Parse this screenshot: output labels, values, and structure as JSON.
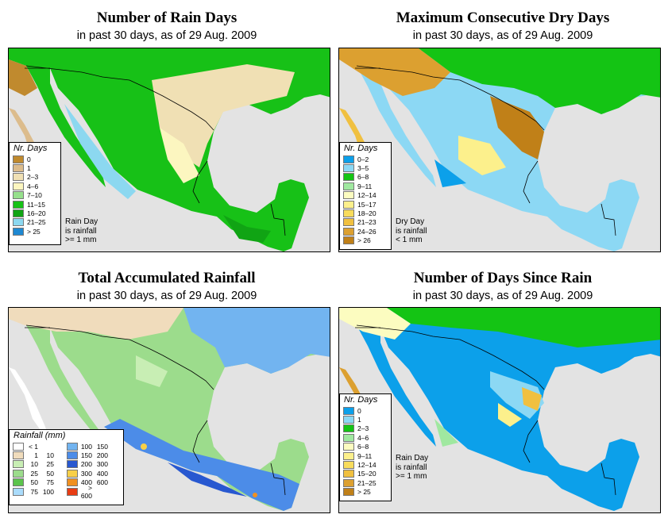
{
  "panels": {
    "rain_days": {
      "title": "Number of Rain Days",
      "subtitle": "in past 30 days, as of  29 Aug. 2009",
      "legend_title": "Nr. Days",
      "legend": [
        {
          "label": "0",
          "color": "#c08a2e"
        },
        {
          "label": "1",
          "color": "#dcbc8c"
        },
        {
          "label": "2–3",
          "color": "#f0e0b4"
        },
        {
          "label": "4–6",
          "color": "#fcf6c0"
        },
        {
          "label": "7–10",
          "color": "#96e08c"
        },
        {
          "label": "11–15",
          "color": "#17c117"
        },
        {
          "label": "16–20",
          "color": "#10a414"
        },
        {
          "label": "21–25",
          "color": "#8cd8f0"
        },
        {
          "label": "> 25",
          "color": "#1e88d2"
        }
      ],
      "note": [
        "Rain Day",
        "is rainfall",
        ">= 1 mm"
      ]
    },
    "dry_days": {
      "title": "Maximum Consecutive Dry Days",
      "subtitle": "in past 30 days, as of  29 Aug. 2009",
      "legend_title": "Nr. Days",
      "legend": [
        {
          "label": "0–2",
          "color": "#0ca0ea"
        },
        {
          "label": "3–5",
          "color": "#8cd8f4"
        },
        {
          "label": "6–8",
          "color": "#14c414"
        },
        {
          "label": "9–11",
          "color": "#a0e8a0"
        },
        {
          "label": "12–14",
          "color": "#fcfcc0"
        },
        {
          "label": "15–17",
          "color": "#fcf08c"
        },
        {
          "label": "18–20",
          "color": "#f8dc5c"
        },
        {
          "label": "21–23",
          "color": "#f0c040"
        },
        {
          "label": "24–26",
          "color": "#dca030"
        },
        {
          "label": "> 26",
          "color": "#c08018"
        }
      ],
      "note": [
        "Dry Day",
        "is rainfall",
        "< 1 mm"
      ]
    },
    "total_rain": {
      "title": "Total Accumulated Rainfall",
      "subtitle": "in past 30 days, as of  29 Aug. 2009",
      "legend_title": "Rainfall (mm)",
      "legend_left": [
        {
          "lo": "< 1",
          "hi": "",
          "color": "#ffffff"
        },
        {
          "lo": "1",
          "hi": "10",
          "color": "#f0dcbc"
        },
        {
          "lo": "10",
          "hi": "25",
          "color": "#c8eeb4"
        },
        {
          "lo": "25",
          "hi": "50",
          "color": "#9cdc8c"
        },
        {
          "lo": "50",
          "hi": "75",
          "color": "#5cc44c"
        },
        {
          "lo": "75",
          "hi": "100",
          "color": "#aadcfc"
        }
      ],
      "legend_right": [
        {
          "lo": "100",
          "hi": "150",
          "color": "#72b4f0"
        },
        {
          "lo": "150",
          "hi": "200",
          "color": "#4c8ce8"
        },
        {
          "lo": "200",
          "hi": "300",
          "color": "#2858d0"
        },
        {
          "lo": "300",
          "hi": "400",
          "color": "#f8d048"
        },
        {
          "lo": "400",
          "hi": "600",
          "color": "#f09020"
        },
        {
          "lo": "> 600",
          "hi": "",
          "color": "#e83c14"
        }
      ]
    },
    "since_rain": {
      "title": "Number of Days Since Rain",
      "subtitle": "in past 30 days, as of  29 Aug. 2009",
      "legend_title": "Nr. Days",
      "legend": [
        {
          "label": "0",
          "color": "#0ca0ea"
        },
        {
          "label": "1",
          "color": "#8cd8f4"
        },
        {
          "label": "2–3",
          "color": "#14c414"
        },
        {
          "label": "4–6",
          "color": "#a0e8a0"
        },
        {
          "label": "6–8",
          "color": "#fcfcc0"
        },
        {
          "label": "9–11",
          "color": "#fcf08c"
        },
        {
          "label": "12–14",
          "color": "#f8dc5c"
        },
        {
          "label": "15–20",
          "color": "#f0c040"
        },
        {
          "label": "21–25",
          "color": "#dca030"
        },
        {
          "label": "> 25",
          "color": "#c08018"
        }
      ],
      "note": [
        "Rain Day",
        "is rainfall",
        ">= 1 mm"
      ]
    }
  },
  "colors": {
    "ocean": "#e3e3e3",
    "rain_days_land": "#17c117",
    "dry_days_land": "#8cd8f4",
    "total_rain_land": "#9cdc8c",
    "since_rain_land": "#0ca0ea"
  }
}
